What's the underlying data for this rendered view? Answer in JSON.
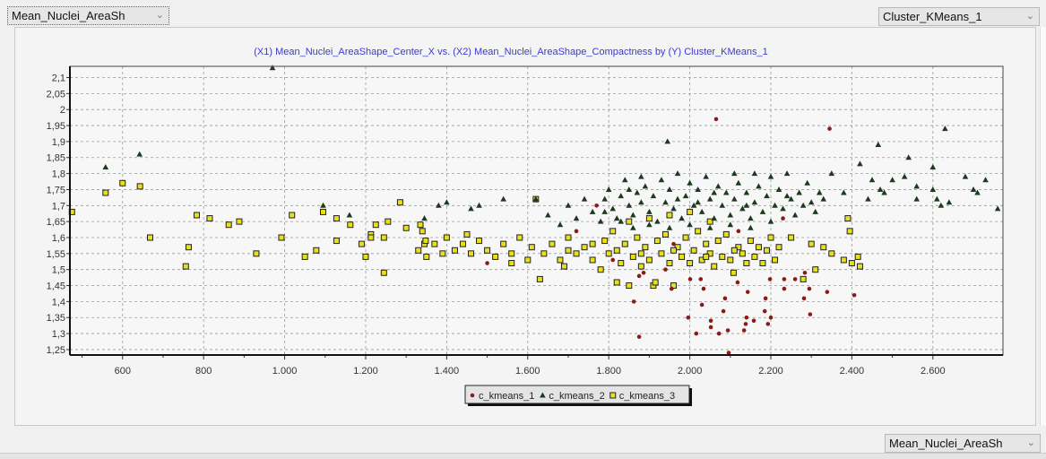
{
  "controls": {
    "x_selector": "Mean_Nuclei_AreaSh",
    "color_selector": "Cluster_KMeans_1",
    "y_selector": "Mean_Nuclei_AreaSh"
  },
  "chart_data": {
    "type": "scatter",
    "title": "(X1) Mean_Nuclei_AreaShape_Center_X vs. (X2) Mean_Nuclei_AreaShape_Compactness by (Y) Cluster_KMeans_1",
    "xlim": [
      470,
      2773
    ],
    "ylim": [
      1.233,
      2.135
    ],
    "x_ticks": [
      600,
      800,
      1000,
      1200,
      1400,
      1600,
      1800,
      2000,
      2200,
      2400,
      2600
    ],
    "x_tick_labels": [
      "600",
      "800",
      "1.000",
      "1.200",
      "1.400",
      "1.600",
      "1.800",
      "2.000",
      "2.200",
      "2.400",
      "2.600"
    ],
    "y_ticks": [
      1.25,
      1.3,
      1.35,
      1.4,
      1.45,
      1.5,
      1.55,
      1.6,
      1.65,
      1.7,
      1.75,
      1.8,
      1.85,
      1.9,
      1.95,
      2,
      2.05,
      2.1
    ],
    "y_tick_labels": [
      "1,25",
      "1,3",
      "1,35",
      "1,4",
      "1,45",
      "1,5",
      "1,55",
      "1,6",
      "1,65",
      "1,7",
      "1,75",
      "1,8",
      "1,85",
      "1,9",
      "1,95",
      "2",
      "2,05",
      "2,1"
    ],
    "grid": true,
    "legend_position": "bottom",
    "series": [
      {
        "name": "c_kmeans_1",
        "marker": "circle",
        "color": "#8b1a1a",
        "points": [
          [
            1862,
            1.4
          ],
          [
            1875,
            1.29
          ],
          [
            1955,
            1.44
          ],
          [
            1996,
            1.35
          ],
          [
            2016,
            1.3
          ],
          [
            2030,
            1.39
          ],
          [
            2034,
            1.44
          ],
          [
            2027,
            1.47
          ],
          [
            2001,
            1.47
          ],
          [
            2052,
            1.34
          ],
          [
            2052,
            1.32
          ],
          [
            2072,
            1.3
          ],
          [
            2083,
            1.37
          ],
          [
            2087,
            1.41
          ],
          [
            2094,
            1.31
          ],
          [
            2096,
            1.24
          ],
          [
            2118,
            1.46
          ],
          [
            2138,
            1.33
          ],
          [
            2140,
            1.35
          ],
          [
            2134,
            1.31
          ],
          [
            2143,
            1.43
          ],
          [
            2158,
            1.34
          ],
          [
            2185,
            1.37
          ],
          [
            2187,
            1.41
          ],
          [
            2193,
            1.33
          ],
          [
            2200,
            1.35
          ],
          [
            2198,
            1.47
          ],
          [
            2233,
            1.47
          ],
          [
            2233,
            1.44
          ],
          [
            2260,
            1.47
          ],
          [
            2282,
            1.41
          ],
          [
            2295,
            1.44
          ],
          [
            2284,
            1.49
          ],
          [
            2297,
            1.36
          ],
          [
            2339,
            1.43
          ],
          [
            2406,
            1.42
          ],
          [
            1875,
            1.48
          ],
          [
            1886,
            1.49
          ],
          [
            2065,
            1.97
          ],
          [
            2345,
            1.94
          ],
          [
            1500,
            1.52
          ],
          [
            1720,
            1.62
          ],
          [
            1770,
            1.7
          ],
          [
            1810,
            1.53
          ],
          [
            1940,
            1.5
          ],
          [
            2120,
            1.62
          ],
          [
            2230,
            1.66
          ],
          [
            1960,
            1.58
          ]
        ]
      },
      {
        "name": "c_kmeans_2",
        "marker": "triangle",
        "color": "#1e3a1e",
        "points": [
          [
            558,
            1.82
          ],
          [
            642,
            1.86
          ],
          [
            970,
            2.13
          ],
          [
            1095,
            1.7
          ],
          [
            1160,
            1.67
          ],
          [
            1345,
            1.66
          ],
          [
            1945,
            1.9
          ],
          [
            2465,
            1.89
          ],
          [
            2630,
            1.94
          ],
          [
            2540,
            1.85
          ],
          [
            2420,
            1.83
          ],
          [
            2600,
            1.82
          ],
          [
            2780,
            1.73
          ],
          [
            2760,
            1.69
          ],
          [
            2700,
            1.75
          ],
          [
            2680,
            1.79
          ],
          [
            2730,
            1.78
          ],
          [
            2530,
            1.79
          ],
          [
            2500,
            1.78
          ],
          [
            2450,
            1.78
          ],
          [
            2470,
            1.75
          ],
          [
            2560,
            1.76
          ],
          [
            2600,
            1.75
          ],
          [
            2610,
            1.72
          ],
          [
            2620,
            1.7
          ],
          [
            2640,
            1.71
          ],
          [
            2710,
            1.74
          ],
          [
            2560,
            1.72
          ],
          [
            2480,
            1.74
          ],
          [
            2440,
            1.72
          ],
          [
            2380,
            1.74
          ],
          [
            2330,
            1.72
          ],
          [
            2300,
            1.71
          ],
          [
            2290,
            1.77
          ],
          [
            2350,
            1.8
          ],
          [
            2240,
            1.8
          ],
          [
            2200,
            1.79
          ],
          [
            2160,
            1.8
          ],
          [
            2110,
            1.8
          ],
          [
            1400,
            1.71
          ],
          [
            1380,
            1.7
          ],
          [
            1480,
            1.7
          ],
          [
            1540,
            1.72
          ],
          [
            1620,
            1.72
          ],
          [
            1700,
            1.7
          ],
          [
            1740,
            1.72
          ],
          [
            1460,
            1.69
          ],
          [
            1650,
            1.67
          ],
          [
            1680,
            1.64
          ],
          [
            1720,
            1.66
          ],
          [
            1760,
            1.68
          ],
          [
            1780,
            1.65
          ],
          [
            1790,
            1.72
          ],
          [
            1800,
            1.75
          ],
          [
            1810,
            1.69
          ],
          [
            1820,
            1.66
          ],
          [
            1830,
            1.73
          ],
          [
            1840,
            1.78
          ],
          [
            1850,
            1.7
          ],
          [
            1860,
            1.67
          ],
          [
            1870,
            1.74
          ],
          [
            1880,
            1.71
          ],
          [
            1890,
            1.76
          ],
          [
            1900,
            1.68
          ],
          [
            1910,
            1.73
          ],
          [
            1920,
            1.65
          ],
          [
            1930,
            1.78
          ],
          [
            1940,
            1.71
          ],
          [
            1950,
            1.75
          ],
          [
            1960,
            1.69
          ],
          [
            1970,
            1.8
          ],
          [
            1980,
            1.66
          ],
          [
            1990,
            1.73
          ],
          [
            2000,
            1.77
          ],
          [
            2010,
            1.7
          ],
          [
            2020,
            1.75
          ],
          [
            2030,
            1.68
          ],
          [
            2040,
            1.79
          ],
          [
            2050,
            1.72
          ],
          [
            2060,
            1.66
          ],
          [
            2070,
            1.76
          ],
          [
            2080,
            1.7
          ],
          [
            2090,
            1.74
          ],
          [
            2100,
            1.67
          ],
          [
            2110,
            1.72
          ],
          [
            2120,
            1.77
          ],
          [
            2130,
            1.69
          ],
          [
            2140,
            1.74
          ],
          [
            2150,
            1.66
          ],
          [
            2160,
            1.71
          ],
          [
            2170,
            1.76
          ],
          [
            2180,
            1.68
          ],
          [
            2190,
            1.73
          ],
          [
            2200,
            1.65
          ],
          [
            2210,
            1.7
          ],
          [
            2220,
            1.75
          ],
          [
            2230,
            1.69
          ],
          [
            2250,
            1.72
          ],
          [
            2260,
            1.67
          ],
          [
            2270,
            1.74
          ],
          [
            2280,
            1.7
          ],
          [
            2310,
            1.68
          ],
          [
            2320,
            1.74
          ],
          [
            1860,
            1.63
          ],
          [
            1900,
            1.64
          ],
          [
            1950,
            1.63
          ],
          [
            2000,
            1.64
          ],
          [
            2050,
            1.63
          ],
          [
            2100,
            1.64
          ],
          [
            2150,
            1.63
          ],
          [
            1830,
            1.65
          ],
          [
            1880,
            1.79
          ],
          [
            2020,
            1.71
          ],
          [
            2060,
            1.74
          ],
          [
            1970,
            1.72
          ],
          [
            2140,
            1.7
          ],
          [
            2240,
            1.73
          ],
          [
            1790,
            1.68
          ],
          [
            1850,
            1.75
          ]
        ]
      },
      {
        "name": "c_kmeans_3",
        "marker": "square",
        "color": "#e8e01a",
        "points": [
          [
            475,
            1.68
          ],
          [
            558,
            1.74
          ],
          [
            600,
            1.77
          ],
          [
            643,
            1.76
          ],
          [
            668,
            1.6
          ],
          [
            756,
            1.51
          ],
          [
            763,
            1.57
          ],
          [
            783,
            1.67
          ],
          [
            815,
            1.66
          ],
          [
            862,
            1.64
          ],
          [
            888,
            1.65
          ],
          [
            930,
            1.55
          ],
          [
            992,
            1.6
          ],
          [
            1018,
            1.67
          ],
          [
            1050,
            1.54
          ],
          [
            1078,
            1.56
          ],
          [
            1095,
            1.68
          ],
          [
            1128,
            1.59
          ],
          [
            1128,
            1.66
          ],
          [
            1162,
            1.64
          ],
          [
            1190,
            1.58
          ],
          [
            1200,
            1.54
          ],
          [
            1213,
            1.61
          ],
          [
            1213,
            1.6
          ],
          [
            1225,
            1.64
          ],
          [
            1245,
            1.6
          ],
          [
            1245,
            1.49
          ],
          [
            1255,
            1.65
          ],
          [
            1285,
            1.71
          ],
          [
            1300,
            1.63
          ],
          [
            1330,
            1.56
          ],
          [
            1335,
            1.64
          ],
          [
            1340,
            1.62
          ],
          [
            1345,
            1.58
          ],
          [
            1348,
            1.59
          ],
          [
            1350,
            1.54
          ],
          [
            1370,
            1.58
          ],
          [
            1390,
            1.55
          ],
          [
            1400,
            1.6
          ],
          [
            1420,
            1.56
          ],
          [
            1440,
            1.58
          ],
          [
            1460,
            1.55
          ],
          [
            1480,
            1.59
          ],
          [
            1500,
            1.56
          ],
          [
            1520,
            1.54
          ],
          [
            1540,
            1.58
          ],
          [
            1560,
            1.55
          ],
          [
            1580,
            1.6
          ],
          [
            1600,
            1.53
          ],
          [
            1610,
            1.57
          ],
          [
            1620,
            1.72
          ],
          [
            1630,
            1.47
          ],
          [
            1640,
            1.55
          ],
          [
            1660,
            1.58
          ],
          [
            1680,
            1.53
          ],
          [
            1690,
            1.51
          ],
          [
            1700,
            1.6
          ],
          [
            1720,
            1.55
          ],
          [
            1740,
            1.57
          ],
          [
            1760,
            1.53
          ],
          [
            1780,
            1.5
          ],
          [
            1790,
            1.59
          ],
          [
            1800,
            1.55
          ],
          [
            1810,
            1.62
          ],
          [
            1820,
            1.46
          ],
          [
            1830,
            1.52
          ],
          [
            1840,
            1.58
          ],
          [
            1850,
            1.45
          ],
          [
            1860,
            1.54
          ],
          [
            1870,
            1.6
          ],
          [
            1880,
            1.51
          ],
          [
            1890,
            1.57
          ],
          [
            1900,
            1.53
          ],
          [
            1910,
            1.45
          ],
          [
            1915,
            1.46
          ],
          [
            1920,
            1.59
          ],
          [
            1930,
            1.55
          ],
          [
            1940,
            1.61
          ],
          [
            1950,
            1.52
          ],
          [
            1960,
            1.45
          ],
          [
            1970,
            1.57
          ],
          [
            1980,
            1.54
          ],
          [
            1990,
            1.6
          ],
          [
            2000,
            1.52
          ],
          [
            2010,
            1.56
          ],
          [
            2020,
            1.62
          ],
          [
            2030,
            1.53
          ],
          [
            2040,
            1.58
          ],
          [
            2050,
            1.55
          ],
          [
            2060,
            1.51
          ],
          [
            2070,
            1.59
          ],
          [
            2080,
            1.54
          ],
          [
            2090,
            1.61
          ],
          [
            2100,
            1.53
          ],
          [
            2108,
            1.49
          ],
          [
            2120,
            1.57
          ],
          [
            2130,
            1.55
          ],
          [
            2140,
            1.52
          ],
          [
            2150,
            1.59
          ],
          [
            2160,
            1.54
          ],
          [
            2170,
            1.57
          ],
          [
            2180,
            1.52
          ],
          [
            2190,
            1.56
          ],
          [
            2200,
            1.6
          ],
          [
            2210,
            1.53
          ],
          [
            2220,
            1.57
          ],
          [
            2250,
            1.6
          ],
          [
            2280,
            1.47
          ],
          [
            2300,
            1.58
          ],
          [
            2310,
            1.5
          ],
          [
            2330,
            1.57
          ],
          [
            2350,
            1.55
          ],
          [
            2380,
            1.53
          ],
          [
            2390,
            1.66
          ],
          [
            2395,
            1.62
          ],
          [
            2400,
            1.52
          ],
          [
            2415,
            1.54
          ],
          [
            2420,
            1.51
          ],
          [
            1850,
            1.65
          ],
          [
            1900,
            1.66
          ],
          [
            1950,
            1.67
          ],
          [
            2000,
            1.68
          ],
          [
            2050,
            1.65
          ],
          [
            1820,
            1.56
          ],
          [
            1880,
            1.55
          ],
          [
            1960,
            1.56
          ],
          [
            2040,
            1.54
          ],
          [
            2110,
            1.56
          ],
          [
            1760,
            1.58
          ],
          [
            1700,
            1.56
          ],
          [
            1560,
            1.52
          ],
          [
            1450,
            1.61
          ]
        ]
      }
    ]
  }
}
